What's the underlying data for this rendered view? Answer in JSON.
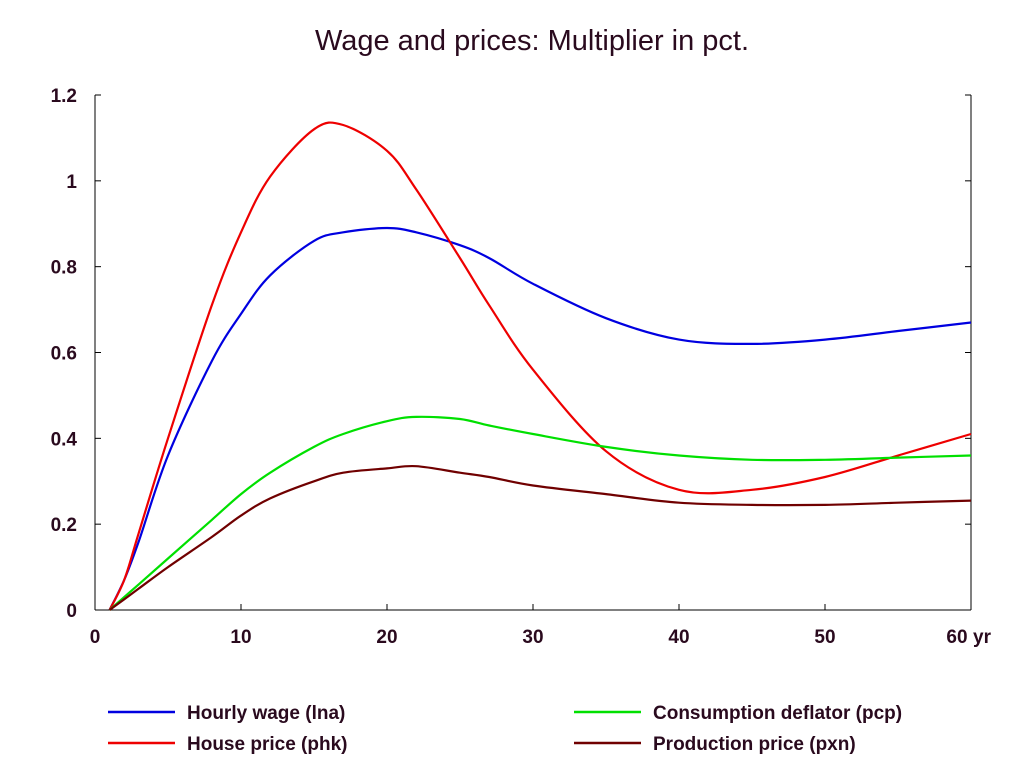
{
  "chart_data": {
    "type": "line",
    "title": "Wage and prices: Multiplier in pct.",
    "xlabel": "",
    "ylabel": "",
    "x_unit": "yr",
    "xlim": [
      0,
      60
    ],
    "ylim": [
      0,
      1.2
    ],
    "xticks": [
      0,
      10,
      20,
      30,
      40,
      50,
      60
    ],
    "yticks": [
      0,
      0.2,
      0.4,
      0.6,
      0.8,
      1,
      1.2
    ],
    "ytick_labels": [
      "0",
      "0.2",
      "0.4",
      "0.6",
      "0.8",
      "1",
      "1.2"
    ],
    "grid": false,
    "legend_position": "bottom",
    "x": [
      1,
      2,
      3,
      5,
      8,
      10,
      12,
      15,
      17,
      20,
      22,
      25,
      27,
      30,
      35,
      40,
      45,
      50,
      55,
      60
    ],
    "series": [
      {
        "name": "Hourly wage (lna)",
        "color": "#0000e0",
        "values": [
          0.0,
          0.07,
          0.16,
          0.36,
          0.58,
          0.69,
          0.78,
          0.86,
          0.88,
          0.89,
          0.88,
          0.85,
          0.82,
          0.76,
          0.68,
          0.63,
          0.62,
          0.63,
          0.65,
          0.67
        ]
      },
      {
        "name": "House price (phk)",
        "color": "#ee0000",
        "values": [
          0.0,
          0.07,
          0.18,
          0.4,
          0.71,
          0.88,
          1.01,
          1.12,
          1.13,
          1.07,
          0.98,
          0.82,
          0.71,
          0.56,
          0.37,
          0.28,
          0.28,
          0.31,
          0.36,
          0.41
        ]
      },
      {
        "name": "Consumption deflator (pcp)",
        "color": "#00e000",
        "values": [
          0.0,
          0.03,
          0.06,
          0.12,
          0.21,
          0.27,
          0.32,
          0.38,
          0.41,
          0.44,
          0.45,
          0.445,
          0.43,
          0.41,
          0.38,
          0.36,
          0.35,
          0.35,
          0.355,
          0.36
        ]
      },
      {
        "name": "Production price (pxn)",
        "color": "#700000",
        "values": [
          0.0,
          0.025,
          0.05,
          0.1,
          0.17,
          0.22,
          0.26,
          0.3,
          0.32,
          0.33,
          0.335,
          0.32,
          0.31,
          0.29,
          0.27,
          0.25,
          0.245,
          0.245,
          0.25,
          0.255
        ]
      }
    ]
  }
}
